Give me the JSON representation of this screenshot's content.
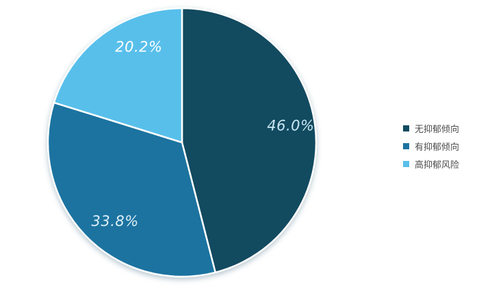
{
  "chart_data": {
    "type": "pie",
    "title": "",
    "categories": [
      "无抑郁倾向",
      "有抑郁倾向",
      "高抑郁风险"
    ],
    "values": [
      46.0,
      33.8,
      20.2
    ],
    "value_labels": [
      "46.0%",
      "33.8%",
      "20.2%"
    ],
    "colors": [
      "#124A60",
      "#1C73A0",
      "#58BFEB"
    ],
    "value_label_colors": [
      "#C8E7F3",
      "#DCEFF8",
      "#FFFFFF"
    ],
    "start_angle_deg": 0,
    "direction": "clockwise",
    "legend_position": "right",
    "background": "#ffffff",
    "slice_gap_color": "#ffffff"
  },
  "legend": {
    "items": [
      {
        "label": "无抑郁倾向",
        "color": "#124A60"
      },
      {
        "label": "有抑郁倾向",
        "color": "#1C73A0"
      },
      {
        "label": "高抑郁风险",
        "color": "#58BFEB"
      }
    ]
  }
}
